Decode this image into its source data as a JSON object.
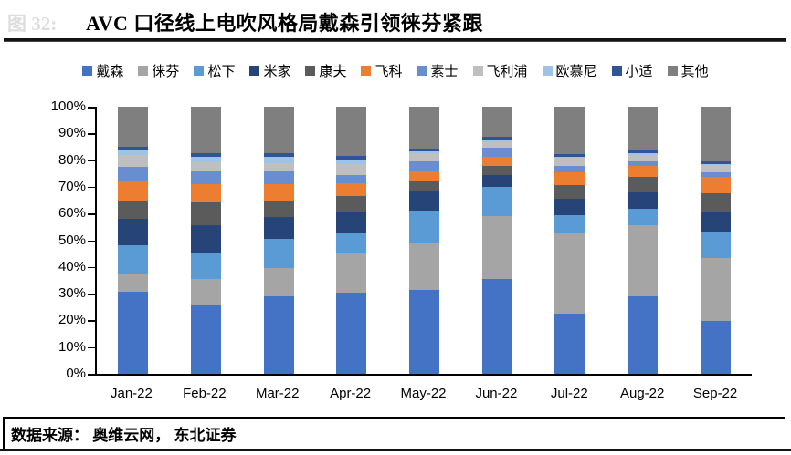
{
  "figure_label": "图 32:",
  "title": "AVC 口径线上电吹风格局戴森引领徕芬紧跟",
  "source_note": "数据来源： 奥维云网， 东北证券",
  "chart_data": {
    "type": "bar",
    "stacked": true,
    "percent_stacked": true,
    "title": "AVC 口径线上电吹风格局戴森引领徕芬紧跟",
    "xlabel": "",
    "ylabel": "",
    "ylim": [
      0,
      100
    ],
    "grid": false,
    "legend_position": "top",
    "y_tick_labels": [
      "100%",
      "90%",
      "80%",
      "70%",
      "60%",
      "50%",
      "40%",
      "30%",
      "20%",
      "10%",
      "0%"
    ],
    "categories": [
      "Jan-22",
      "Feb-22",
      "Mar-22",
      "Apr-22",
      "May-22",
      "Jun-22",
      "Jul-22",
      "Aug-22",
      "Sep-22"
    ],
    "series": [
      {
        "name": "戴森",
        "color": "#4472C4",
        "values": [
          30.7,
          25.6,
          29.0,
          30.4,
          31.5,
          35.6,
          22.4,
          29.0,
          19.7
        ]
      },
      {
        "name": "徕芬",
        "color": "#A5A5A5",
        "values": [
          6.8,
          9.9,
          10.5,
          14.7,
          17.7,
          23.6,
          30.5,
          26.7,
          23.5
        ]
      },
      {
        "name": "松下",
        "color": "#5B9BD5",
        "values": [
          10.5,
          10.0,
          11.1,
          7.8,
          11.9,
          10.8,
          6.6,
          6.1,
          9.9
        ]
      },
      {
        "name": "米家",
        "color": "#264478",
        "values": [
          10.0,
          10.2,
          8.0,
          7.7,
          7.3,
          4.3,
          5.9,
          6.1,
          7.8
        ]
      },
      {
        "name": "康夫",
        "color": "#5B5B5B",
        "values": [
          6.8,
          8.8,
          6.2,
          6.0,
          4.0,
          3.4,
          5.1,
          5.7,
          6.6
        ]
      },
      {
        "name": "飞科",
        "color": "#ED7D31",
        "values": [
          7.1,
          6.6,
          6.3,
          4.7,
          3.5,
          3.6,
          4.9,
          4.1,
          6.1
        ]
      },
      {
        "name": "素士",
        "color": "#698ED0",
        "values": [
          5.5,
          5.1,
          4.8,
          3.0,
          3.5,
          3.2,
          2.5,
          1.8,
          1.8
        ]
      },
      {
        "name": "飞利浦",
        "color": "#BFBFBF",
        "values": [
          4.5,
          3.1,
          2.9,
          4.2,
          3.2,
          2.3,
          3.0,
          2.3,
          2.7
        ]
      },
      {
        "name": "欧慕尼",
        "color": "#9DC3E6",
        "values": [
          1.7,
          1.8,
          2.5,
          1.9,
          0.8,
          1.0,
          0.4,
          0.9,
          0.4
        ]
      },
      {
        "name": "小适",
        "color": "#2F5597",
        "values": [
          1.4,
          1.4,
          1.2,
          1.2,
          0.8,
          0.9,
          1.0,
          0.9,
          1.1
        ]
      },
      {
        "name": "其他",
        "color": "#7F7F7F",
        "values": [
          15.0,
          17.5,
          17.5,
          18.4,
          15.8,
          11.3,
          17.7,
          16.4,
          20.4
        ]
      }
    ]
  }
}
